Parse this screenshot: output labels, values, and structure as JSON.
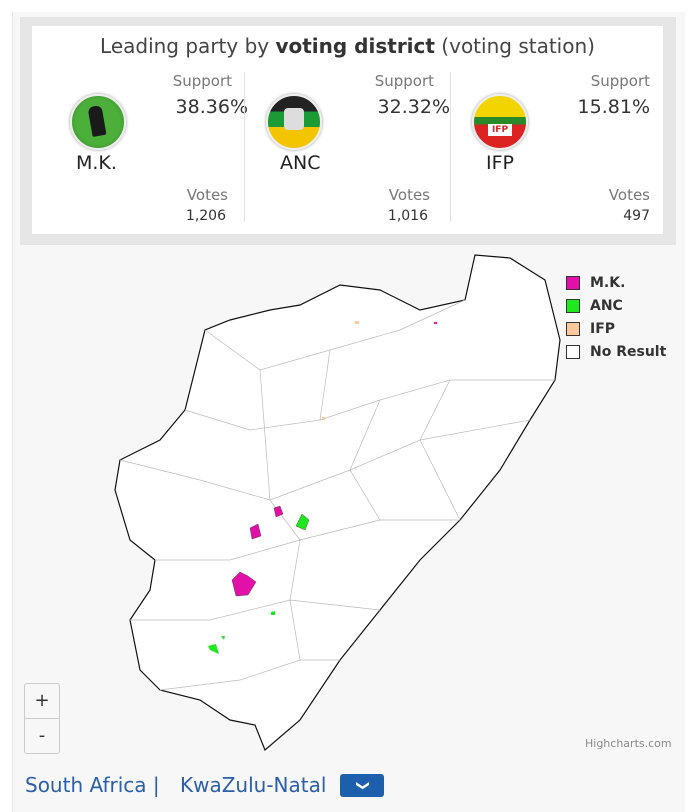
{
  "header": {
    "title_prefix": "Leading party by ",
    "title_bold": "voting district",
    "title_suffix": " (voting station)"
  },
  "parties": [
    {
      "name": "M.K.",
      "support_label": "Support",
      "support": "38.36%",
      "votes_label": "Votes",
      "votes": "1,206",
      "logo_icon": "mk-party-logo"
    },
    {
      "name": "ANC",
      "support_label": "Support",
      "support": "32.32%",
      "votes_label": "Votes",
      "votes": "1,016",
      "logo_icon": "anc-party-logo"
    },
    {
      "name": "IFP",
      "support_label": "Support",
      "support": "15.81%",
      "votes_label": "Votes",
      "votes": "497",
      "logo_icon": "ifp-party-logo"
    }
  ],
  "legend": [
    {
      "label": "M.K.",
      "color": "#e20fa8"
    },
    {
      "label": "ANC",
      "color": "#1ee81e"
    },
    {
      "label": "IFP",
      "color": "#ffc89a"
    },
    {
      "label": "No Result",
      "color": "#ffffff"
    }
  ],
  "zoom": {
    "in": "+",
    "out": "-"
  },
  "credit": "Highcharts.com",
  "breadcrumb": {
    "country": "South Africa |",
    "province": "KwaZulu-Natal"
  }
}
